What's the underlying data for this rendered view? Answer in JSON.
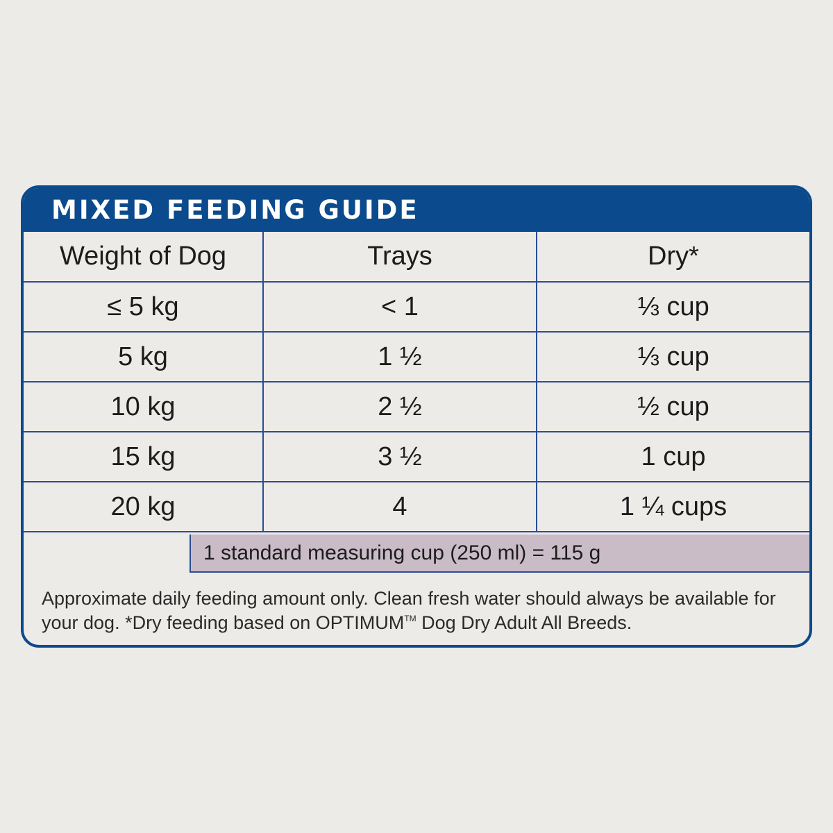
{
  "header": {
    "title": "MIXED FEEDING GUIDE"
  },
  "table": {
    "columns": [
      "Weight of Dog",
      "Trays",
      "Dry*"
    ],
    "rows": [
      [
        "≤ 5 kg",
        "< 1",
        "⅓ cup"
      ],
      [
        "5 kg",
        "1 ½",
        "⅓ cup"
      ],
      [
        "10 kg",
        "2 ½",
        "½ cup"
      ],
      [
        "15 kg",
        "3 ½",
        "1 cup"
      ],
      [
        "20 kg",
        "4",
        "1 ¼ cups"
      ]
    ]
  },
  "measure_note": "1 standard measuring cup (250 ml) = 115 g",
  "footnote": {
    "line_start": "Approximate daily feeding amount only. Clean fresh water should always be available for your dog. *Dry feeding based on OPTIMUM",
    "trademark": "TM",
    "line_end": " Dog Dry Adult All Breeds."
  },
  "colors": {
    "brand_blue": "#0b4a8c",
    "note_band": "#c9bcc7",
    "background": "#edebe8"
  }
}
